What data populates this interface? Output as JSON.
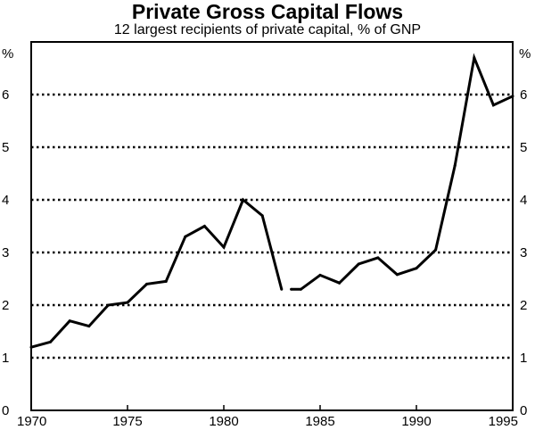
{
  "chart_data": {
    "type": "line",
    "title": "Private Gross Capital Flows",
    "subtitle": "12 largest recipients of private capital, % of GNP",
    "y_unit_left": "%",
    "y_unit_right": "%",
    "xlim": [
      1970,
      1995
    ],
    "ylim": [
      0,
      7
    ],
    "x_ticks": [
      "1970",
      "1975",
      "1980",
      "1985",
      "1990",
      "1995"
    ],
    "y_ticks": [
      "0",
      "1",
      "2",
      "3",
      "4",
      "5",
      "6"
    ],
    "grid": "horizontal dotted",
    "series": [
      {
        "segments": [
          {
            "x": [
              1970,
              1971,
              1972,
              1973,
              1974,
              1975,
              1976,
              1977,
              1978,
              1979,
              1980,
              1981,
              1982,
              1983
            ],
            "y": [
              1.2,
              1.3,
              1.7,
              1.6,
              2.0,
              2.05,
              2.4,
              2.45,
              3.3,
              3.5,
              3.1,
              4.0,
              3.7,
              2.3
            ]
          },
          {
            "x": [
              1983.5,
              1984,
              1985,
              1986,
              1987,
              1988,
              1989,
              1990,
              1991,
              1992,
              1993,
              1994,
              1995
            ],
            "y": [
              2.3,
              2.3,
              2.57,
              2.42,
              2.78,
              2.9,
              2.58,
              2.7,
              3.05,
              4.65,
              6.7,
              5.8,
              5.97
            ]
          }
        ]
      }
    ]
  }
}
